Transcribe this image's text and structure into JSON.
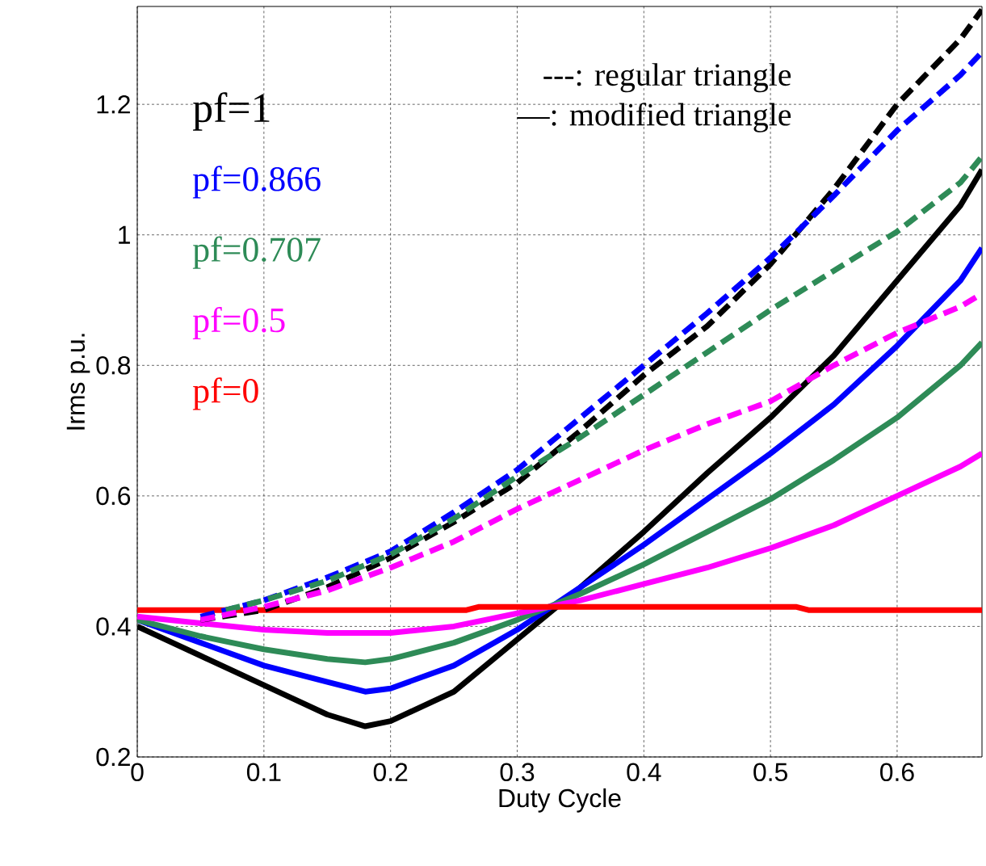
{
  "chart_data": {
    "type": "line",
    "xlabel": "Duty Cycle",
    "ylabel": "Irms p.u.",
    "xlim": [
      0,
      0.667
    ],
    "ylim": [
      0.2,
      1.35
    ],
    "xticks": [
      0,
      0.1,
      0.2,
      0.3,
      0.4,
      0.5,
      0.6
    ],
    "yticks": [
      0.2,
      0.4,
      0.6,
      0.8,
      1,
      1.2
    ],
    "grid": true,
    "annotations": [
      "---: regular triangle",
      "—: modified triangle"
    ],
    "series": [
      {
        "name": "pf=1",
        "color": "#000000",
        "line_style": "solid",
        "x": [
          0,
          0.05,
          0.1,
          0.15,
          0.18,
          0.2,
          0.25,
          0.3,
          0.35,
          0.4,
          0.45,
          0.5,
          0.55,
          0.6,
          0.65,
          0.667
        ],
        "values": [
          0.4,
          0.355,
          0.31,
          0.265,
          0.247,
          0.255,
          0.3,
          0.38,
          0.46,
          0.545,
          0.635,
          0.72,
          0.815,
          0.93,
          1.045,
          1.1
        ]
      },
      {
        "name": "pf=0.866",
        "color": "#0000ff",
        "line_style": "solid",
        "x": [
          0,
          0.05,
          0.1,
          0.15,
          0.18,
          0.2,
          0.25,
          0.3,
          0.35,
          0.4,
          0.45,
          0.5,
          0.55,
          0.6,
          0.65,
          0.667
        ],
        "values": [
          0.41,
          0.375,
          0.34,
          0.315,
          0.3,
          0.305,
          0.34,
          0.395,
          0.46,
          0.525,
          0.595,
          0.665,
          0.74,
          0.83,
          0.93,
          0.98
        ]
      },
      {
        "name": "pf=0.707",
        "color": "#2e8b57",
        "line_style": "solid",
        "x": [
          0,
          0.05,
          0.1,
          0.15,
          0.18,
          0.2,
          0.25,
          0.3,
          0.35,
          0.4,
          0.45,
          0.5,
          0.55,
          0.6,
          0.65,
          0.667
        ],
        "values": [
          0.41,
          0.385,
          0.365,
          0.35,
          0.345,
          0.35,
          0.375,
          0.41,
          0.45,
          0.495,
          0.545,
          0.595,
          0.655,
          0.72,
          0.8,
          0.835
        ]
      },
      {
        "name": "pf=0.5",
        "color": "#ff00ff",
        "line_style": "solid",
        "x": [
          0,
          0.05,
          0.1,
          0.15,
          0.18,
          0.2,
          0.25,
          0.3,
          0.35,
          0.4,
          0.45,
          0.5,
          0.55,
          0.6,
          0.65,
          0.667
        ],
        "values": [
          0.415,
          0.405,
          0.395,
          0.39,
          0.39,
          0.39,
          0.4,
          0.42,
          0.44,
          0.465,
          0.49,
          0.52,
          0.555,
          0.6,
          0.645,
          0.665
        ]
      },
      {
        "name": "pf=0",
        "color": "#ff0000",
        "line_style": "solid",
        "x": [
          0,
          0.26,
          0.27,
          0.52,
          0.53,
          0.667
        ],
        "values": [
          0.425,
          0.425,
          0.43,
          0.43,
          0.425,
          0.425
        ]
      },
      {
        "color": "#000000",
        "line_style": "dashed",
        "x": [
          0.05,
          0.1,
          0.15,
          0.2,
          0.25,
          0.3,
          0.35,
          0.4,
          0.45,
          0.5,
          0.55,
          0.6,
          0.65,
          0.667
        ],
        "values": [
          0.41,
          0.425,
          0.46,
          0.505,
          0.56,
          0.62,
          0.7,
          0.785,
          0.86,
          0.955,
          1.07,
          1.2,
          1.3,
          1.345
        ]
      },
      {
        "color": "#0000ff",
        "line_style": "dashed",
        "x": [
          0.05,
          0.1,
          0.15,
          0.2,
          0.25,
          0.3,
          0.35,
          0.4,
          0.45,
          0.5,
          0.55,
          0.6,
          0.65,
          0.667
        ],
        "values": [
          0.415,
          0.44,
          0.475,
          0.515,
          0.575,
          0.64,
          0.72,
          0.8,
          0.88,
          0.965,
          1.06,
          1.16,
          1.245,
          1.28
        ]
      },
      {
        "color": "#2e8b57",
        "line_style": "dashed",
        "x": [
          0.07,
          0.1,
          0.15,
          0.2,
          0.25,
          0.3,
          0.35,
          0.4,
          0.45,
          0.5,
          0.55,
          0.6,
          0.65,
          0.667
        ],
        "values": [
          0.425,
          0.44,
          0.47,
          0.51,
          0.565,
          0.63,
          0.69,
          0.755,
          0.82,
          0.885,
          0.945,
          1.005,
          1.08,
          1.12
        ]
      },
      {
        "color": "#ff00ff",
        "line_style": "dashed",
        "x": [
          0.05,
          0.1,
          0.15,
          0.2,
          0.25,
          0.3,
          0.35,
          0.4,
          0.45,
          0.5,
          0.55,
          0.6,
          0.65,
          0.667
        ],
        "values": [
          0.41,
          0.43,
          0.455,
          0.49,
          0.53,
          0.58,
          0.625,
          0.67,
          0.71,
          0.745,
          0.8,
          0.85,
          0.89,
          0.91
        ]
      }
    ]
  }
}
